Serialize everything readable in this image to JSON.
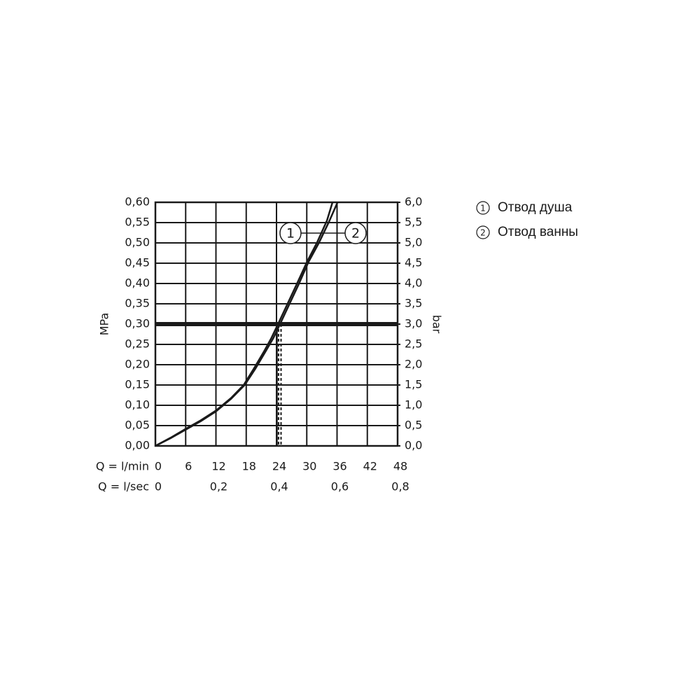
{
  "chart_data": {
    "type": "line",
    "ylabel": "MPa",
    "y2label": "bar",
    "xlabel": "Q = l/min",
    "x2label": "Q = l/sec",
    "xlim": [
      0,
      48
    ],
    "xticks": [
      0,
      6,
      12,
      18,
      24,
      30,
      36,
      42,
      48
    ],
    "x2lim": [
      0,
      0.8
    ],
    "x2ticks": [
      0,
      {
        "value": 0.2,
        "label": "0,2"
      },
      {
        "value": 0.4,
        "label": "0,4"
      },
      {
        "value": 0.6,
        "label": "0,6"
      },
      {
        "value": 0.8,
        "label": "0,8"
      }
    ],
    "ylim": [
      0,
      0.6
    ],
    "yticks": [
      {
        "value": 0,
        "label": "0,00"
      },
      {
        "value": 0.05,
        "label": "0,05"
      },
      {
        "value": 0.1,
        "label": "0,10"
      },
      {
        "value": 0.15,
        "label": "0,15"
      },
      {
        "value": 0.2,
        "label": "0,20"
      },
      {
        "value": 0.25,
        "label": "0,25"
      },
      {
        "value": 0.3,
        "label": "0,30"
      },
      {
        "value": 0.35,
        "label": "0,35"
      },
      {
        "value": 0.4,
        "label": "0,40"
      },
      {
        "value": 0.45,
        "label": "0,45"
      },
      {
        "value": 0.5,
        "label": "0,50"
      },
      {
        "value": 0.55,
        "label": "0,55"
      },
      {
        "value": 0.6,
        "label": "0,60"
      }
    ],
    "y2lim": [
      0,
      6
    ],
    "y2ticks": [
      {
        "value": 0,
        "label": "0,0"
      },
      {
        "value": 0.5,
        "label": "0,5"
      },
      {
        "value": 1,
        "label": "1,0"
      },
      {
        "value": 1.5,
        "label": "1,5"
      },
      {
        "value": 2,
        "label": "2,0"
      },
      {
        "value": 2.5,
        "label": "2,5"
      },
      {
        "value": 3,
        "label": "3,0"
      },
      {
        "value": 3.5,
        "label": "3,5"
      },
      {
        "value": 4,
        "label": "4,0"
      },
      {
        "value": 4.5,
        "label": "4,5"
      },
      {
        "value": 5,
        "label": "5,0"
      },
      {
        "value": 5.5,
        "label": "5,5"
      },
      {
        "value": 6,
        "label": "6,0"
      }
    ],
    "grid": true,
    "reference_line": {
      "y": 0.3
    },
    "drop_lines": [
      {
        "x": 24.1,
        "style": "solid"
      },
      {
        "x": 24.4,
        "style": "dashed"
      },
      {
        "x": 24.9,
        "style": "dashed"
      }
    ],
    "series": [
      {
        "label": "1",
        "name": "Отвод душа",
        "color": "#1a1a1a",
        "x": [
          0,
          3,
          6,
          9,
          12,
          15,
          17.5,
          19.5,
          21.5,
          23,
          24.3,
          26,
          28,
          30,
          32,
          34,
          35.1
        ],
        "values": [
          0,
          0.02,
          0.042,
          0.063,
          0.087,
          0.118,
          0.15,
          0.19,
          0.232,
          0.266,
          0.3,
          0.345,
          0.398,
          0.452,
          0.5,
          0.555,
          0.6
        ]
      },
      {
        "label": "2",
        "name": "Отвод ванны",
        "color": "#1a1a1a",
        "x": [
          0,
          3,
          6,
          9,
          12,
          15,
          17.7,
          19.8,
          21.8,
          23.4,
          24.7,
          26.4,
          28.4,
          30.3,
          32.4,
          34.4,
          36.1
        ],
        "values": [
          0,
          0.019,
          0.04,
          0.061,
          0.085,
          0.116,
          0.15,
          0.19,
          0.232,
          0.266,
          0.3,
          0.345,
          0.398,
          0.452,
          0.5,
          0.552,
          0.6
        ]
      }
    ]
  }
}
